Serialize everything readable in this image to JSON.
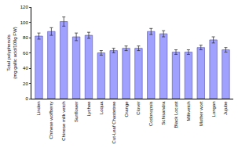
{
  "chart_data": {
    "type": "bar",
    "y_label": "Total polyphenols\n(mg gallic acid/100g FW)",
    "categories": [
      "Linden",
      "Chinese wolfberry",
      "Chinese milk vetch",
      "Sunflower",
      "Lychee",
      "Loqua",
      "Cut-Leaf Chastetree",
      "Orange",
      "Clover",
      "Codonopsis",
      "Schisandra",
      "Black Locust",
      "Milkvetch",
      "Mother wort",
      "Longan",
      "Jujube"
    ],
    "values": [
      82,
      88,
      101,
      81,
      83,
      60,
      63,
      66,
      66,
      88,
      85,
      61,
      61,
      67,
      77,
      64
    ],
    "errors": [
      4,
      5,
      6,
      5,
      4,
      3,
      3,
      3,
      3,
      4,
      4,
      3,
      3,
      3,
      4,
      3
    ],
    "color": "#a0a0ff",
    "ylim": [
      0,
      120
    ],
    "yticks": [
      0,
      20,
      40,
      60,
      80,
      100,
      120
    ],
    "grid": false
  }
}
